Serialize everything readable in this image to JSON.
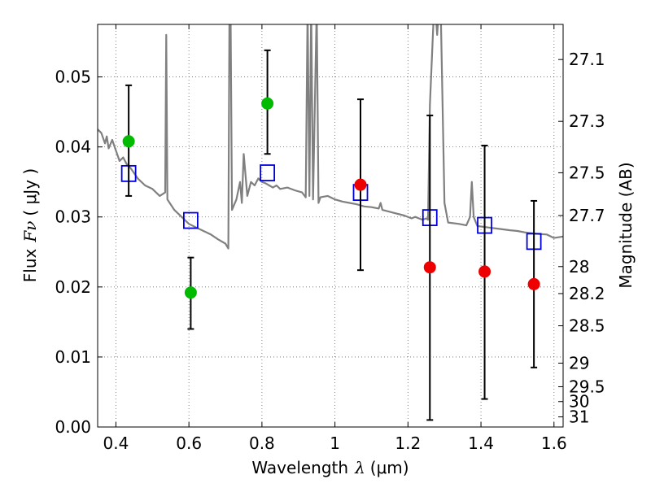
{
  "chart_data": {
    "type": "scatter",
    "title": "",
    "xlabel": "Wavelength",
    "xlabel_symbol": "λ",
    "xlabel_unit": "(μm)",
    "ylabel": "Flux",
    "ylabel_symbol": "Fν",
    "ylabel_unit": "( μJy )",
    "ylabel_right": "Magnitude (AB)",
    "xlim": [
      0.35,
      1.625
    ],
    "ylim": [
      0.0,
      0.0575
    ],
    "grid": true,
    "x_ticks": [
      0.4,
      0.6,
      0.8,
      1.0,
      1.2,
      1.4,
      1.6
    ],
    "x_tick_labels": [
      "0.4",
      "0.6",
      "0.8",
      "1",
      "1.2",
      "1.4",
      "1.6"
    ],
    "y_ticks": [
      0.0,
      0.01,
      0.02,
      0.03,
      0.04,
      0.05
    ],
    "y_tick_labels": [
      "0.00",
      "0.01",
      "0.02",
      "0.03",
      "0.04",
      "0.05"
    ],
    "right_ticks": [
      27.1,
      27.3,
      27.5,
      27.7,
      28.0,
      28.2,
      28.5,
      29.0,
      29.5,
      30.0,
      31.0
    ],
    "right_tick_labels": [
      "27.1",
      "27.3",
      "27.5",
      "27.7",
      "28",
      "28.2",
      "28.5",
      "29",
      "29.5",
      "30",
      "31"
    ],
    "colors": {
      "template": "#808080",
      "model_squares": "#0000dd",
      "observed_green": "#00bb00",
      "observed_red": "#ee0000",
      "errorbar": "#000000"
    },
    "series": [
      {
        "kind": "line",
        "points": [
          [
            0.35,
            0.0425
          ],
          [
            0.36,
            0.042
          ],
          [
            0.37,
            0.0405
          ],
          [
            0.375,
            0.0415
          ],
          [
            0.38,
            0.0398
          ],
          [
            0.39,
            0.041
          ],
          [
            0.4,
            0.0395
          ],
          [
            0.41,
            0.038
          ],
          [
            0.42,
            0.0385
          ],
          [
            0.43,
            0.0375
          ],
          [
            0.44,
            0.037
          ],
          [
            0.46,
            0.0355
          ],
          [
            0.48,
            0.0345
          ],
          [
            0.5,
            0.034
          ],
          [
            0.52,
            0.033
          ],
          [
            0.535,
            0.0335
          ],
          [
            0.538,
            0.056
          ],
          [
            0.541,
            0.0325
          ],
          [
            0.56,
            0.031
          ],
          [
            0.58,
            0.03
          ],
          [
            0.6,
            0.029
          ],
          [
            0.62,
            0.0285
          ],
          [
            0.64,
            0.028
          ],
          [
            0.66,
            0.0275
          ],
          [
            0.68,
            0.0268
          ],
          [
            0.7,
            0.0262
          ],
          [
            0.708,
            0.0255
          ],
          [
            0.711,
            0.06
          ],
          [
            0.714,
            0.06
          ],
          [
            0.718,
            0.031
          ],
          [
            0.73,
            0.0325
          ],
          [
            0.74,
            0.035
          ],
          [
            0.745,
            0.032
          ],
          [
            0.75,
            0.039
          ],
          [
            0.76,
            0.033
          ],
          [
            0.77,
            0.035
          ],
          [
            0.78,
            0.0345
          ],
          [
            0.79,
            0.0355
          ],
          [
            0.8,
            0.035
          ],
          [
            0.81,
            0.0348
          ],
          [
            0.82,
            0.0345
          ],
          [
            0.83,
            0.0342
          ],
          [
            0.84,
            0.0345
          ],
          [
            0.85,
            0.034
          ],
          [
            0.87,
            0.0342
          ],
          [
            0.89,
            0.0338
          ],
          [
            0.91,
            0.0335
          ],
          [
            0.92,
            0.0328
          ],
          [
            0.925,
            0.06
          ],
          [
            0.93,
            0.033
          ],
          [
            0.935,
            0.06
          ],
          [
            0.94,
            0.0325
          ],
          [
            0.95,
            0.06
          ],
          [
            0.955,
            0.032
          ],
          [
            0.96,
            0.0328
          ],
          [
            0.98,
            0.033
          ],
          [
            1.0,
            0.0325
          ],
          [
            1.02,
            0.0322
          ],
          [
            1.04,
            0.032
          ],
          [
            1.06,
            0.0318
          ],
          [
            1.08,
            0.0315
          ],
          [
            1.1,
            0.0314
          ],
          [
            1.12,
            0.0312
          ],
          [
            1.125,
            0.032
          ],
          [
            1.13,
            0.031
          ],
          [
            1.16,
            0.0306
          ],
          [
            1.19,
            0.0302
          ],
          [
            1.21,
            0.0298
          ],
          [
            1.22,
            0.03
          ],
          [
            1.23,
            0.0298
          ],
          [
            1.24,
            0.0296
          ],
          [
            1.25,
            0.0298
          ],
          [
            1.255,
            0.0296
          ],
          [
            1.26,
            0.046
          ],
          [
            1.27,
            0.058
          ],
          [
            1.275,
            0.06
          ],
          [
            1.28,
            0.056
          ],
          [
            1.285,
            0.06
          ],
          [
            1.29,
            0.059
          ],
          [
            1.3,
            0.032
          ],
          [
            1.31,
            0.0292
          ],
          [
            1.34,
            0.029
          ],
          [
            1.36,
            0.0288
          ],
          [
            1.37,
            0.03
          ],
          [
            1.375,
            0.035
          ],
          [
            1.38,
            0.03
          ],
          [
            1.39,
            0.0287
          ],
          [
            1.42,
            0.0285
          ],
          [
            1.45,
            0.0283
          ],
          [
            1.48,
            0.0281
          ],
          [
            1.5,
            0.028
          ],
          [
            1.52,
            0.0278
          ],
          [
            1.55,
            0.0276
          ],
          [
            1.58,
            0.0275
          ],
          [
            1.6,
            0.027
          ],
          [
            1.625,
            0.0272
          ]
        ]
      },
      {
        "kind": "squares",
        "points": [
          [
            0.435,
            0.0362
          ],
          [
            0.605,
            0.0295
          ],
          [
            0.815,
            0.0363
          ],
          [
            1.07,
            0.0335
          ],
          [
            1.26,
            0.0299
          ],
          [
            1.41,
            0.0288
          ],
          [
            1.545,
            0.0265
          ]
        ]
      },
      {
        "kind": "points-green",
        "points": [
          {
            "x": 0.435,
            "y": 0.0408,
            "err_lo": 0.033,
            "err_hi": 0.0488
          },
          {
            "x": 0.605,
            "y": 0.0192,
            "err_lo": 0.014,
            "err_hi": 0.0242
          },
          {
            "x": 0.815,
            "y": 0.0462,
            "err_lo": 0.039,
            "err_hi": 0.0538
          }
        ]
      },
      {
        "kind": "points-red",
        "points": [
          {
            "x": 1.07,
            "y": 0.0346,
            "err_lo": 0.0224,
            "err_hi": 0.0468
          },
          {
            "x": 1.26,
            "y": 0.0228,
            "err_lo": 0.001,
            "err_hi": 0.0445
          },
          {
            "x": 1.41,
            "y": 0.0222,
            "err_lo": 0.004,
            "err_hi": 0.0402
          },
          {
            "x": 1.545,
            "y": 0.0204,
            "err_lo": 0.0085,
            "err_hi": 0.0323
          }
        ]
      }
    ]
  }
}
